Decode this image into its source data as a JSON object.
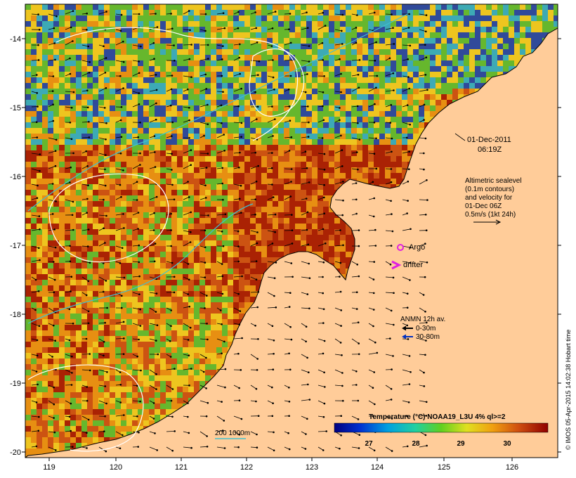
{
  "map": {
    "lon_ticks": [
      "119",
      "120",
      "121",
      "122",
      "123",
      "124",
      "125",
      "126"
    ],
    "lat_ticks": [
      "-14",
      "-15",
      "-16",
      "-17",
      "-18",
      "-19",
      "-20"
    ],
    "date_line1": "01-Dec-2011",
    "date_line2": "06:19Z",
    "sealevel_lines": [
      "Altimetric sealevel",
      "(0.1m contours)",
      "and velocity for",
      "01-Dec 06Z",
      "0.5m/s (1kt 24h)"
    ],
    "argo_label": "Argo",
    "drifter_label": "drifter",
    "anmn_title": "ANMN 12h av.",
    "anmn_shallow": "0-30m",
    "anmn_deep": "30-80m",
    "isobath_label": "200  1000m",
    "colorbar_title": "Temperature (°C) NOAA19_L3U 4% ql>=2",
    "colorbar_ticks": [
      "27",
      "28",
      "29",
      "30"
    ],
    "credit": "© IMOS 05-Apr-2015 14:02:38 Hobart time",
    "colors": {
      "land": "#ffcc99",
      "warm_dark": "#a01000",
      "warm": "#c84a10",
      "orange": "#e89010",
      "yellow": "#f0d020",
      "green": "#50c030",
      "cyan": "#20b0d0",
      "blue": "#1040b0"
    }
  }
}
